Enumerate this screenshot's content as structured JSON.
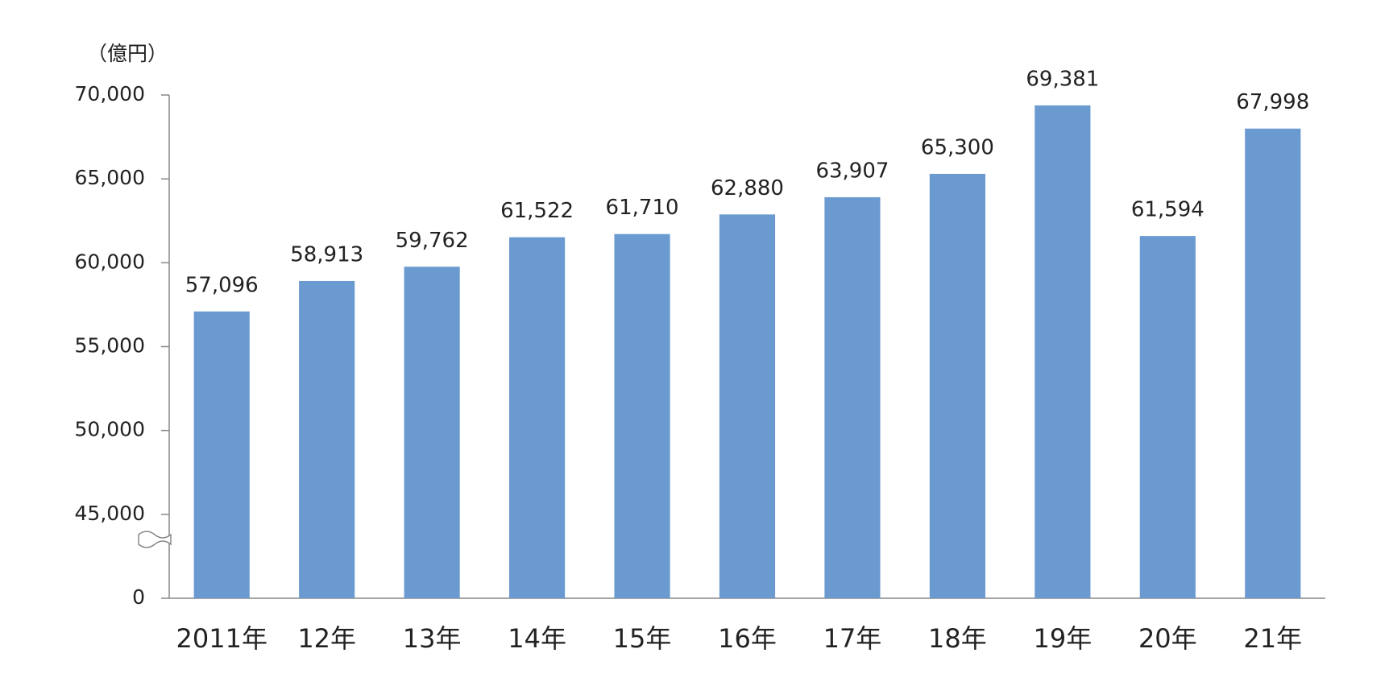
{
  "chart_data": {
    "type": "bar",
    "unit_label": "（億円）",
    "categories": [
      "2011年",
      "12年",
      "13年",
      "14年",
      "15年",
      "16年",
      "17年",
      "18年",
      "19年",
      "20年",
      "21年"
    ],
    "values": [
      57096,
      58913,
      59762,
      61522,
      61710,
      62880,
      63907,
      65300,
      69381,
      61594,
      67998
    ],
    "value_labels": [
      "57,096",
      "58,913",
      "59,762",
      "61,522",
      "61,710",
      "62,880",
      "63,907",
      "65,300",
      "69,381",
      "61,594",
      "67,998"
    ],
    "color": "#6a9ad0",
    "ylim": [
      0,
      70000
    ],
    "yticks": [
      0,
      {
        "value": 45000,
        "label": "45,000"
      },
      {
        "value": 50000,
        "label": "50,000"
      },
      {
        "value": 55000,
        "label": "55,000"
      },
      {
        "value": 60000,
        "label": "60,000"
      },
      {
        "value": 65000,
        "label": "65,000"
      },
      {
        "value": 70000,
        "label": "70,000"
      }
    ],
    "axis_break": true,
    "grid": false
  }
}
